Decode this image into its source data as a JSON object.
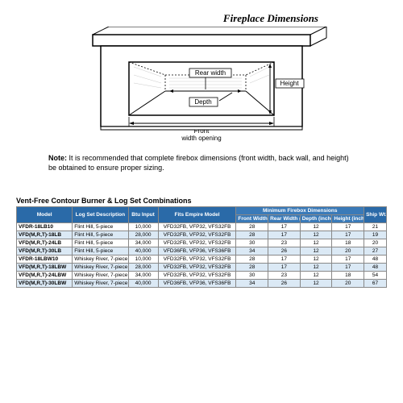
{
  "diagram": {
    "title": "Fireplace Dimensions",
    "labels": {
      "rear_width": "Rear width",
      "height": "Height",
      "depth": "Depth",
      "front": "Front",
      "front_width": "width opening"
    }
  },
  "note": {
    "prefix": "Note:",
    "text": " It is recommended that complete firebox dimensions (front width, back wall, and height) be obtained to ensure proper sizing."
  },
  "table": {
    "title": "Vent-Free Contour Burner & Log Set Combinations",
    "header_bg1": "#2a6aa8",
    "header_bg2": "#3a7ab8",
    "row_alt1": "#ffffff",
    "row_alt2": "#dbe9f5",
    "columns": {
      "model": "Model",
      "desc": "Log Set Description",
      "btu": "Btu Input",
      "fits": "Fits Empire Model",
      "min_group": "Minimum Firebox Dimensions",
      "fw": "Front Width (inches)",
      "rw": "Rear Width (inches)",
      "dp": "Depth (inches)",
      "ht": "Height (inches)",
      "ship": "Ship Wt. (lb)"
    },
    "rows": [
      {
        "model": "VFDR-18LB10",
        "desc": "Flint Hill, 5-piece",
        "btu": "10,000",
        "fits": "VFD32FB, VFP32, VFS32FB",
        "fw": "28",
        "rw": "17",
        "dp": "12",
        "ht": "17",
        "ship": "21"
      },
      {
        "model": "VFD(M,R,T)-18LB",
        "desc": "Flint Hill, 5-piece",
        "btu": "28,000",
        "fits": "VFD32FB, VFP32, VFS32FB",
        "fw": "28",
        "rw": "17",
        "dp": "12",
        "ht": "17",
        "ship": "19"
      },
      {
        "model": "VFD(M,R,T)-24LB",
        "desc": "Flint Hill, 5-piece",
        "btu": "34,000",
        "fits": "VFD32FB, VFP32, VFS32FB",
        "fw": "30",
        "rw": "23",
        "dp": "12",
        "ht": "18",
        "ship": "20"
      },
      {
        "model": "VFD(M,R,T)-30LB",
        "desc": "Flint Hill, 5-piece",
        "btu": "40,000",
        "fits": "VFD36FB, VFP36, VFS36FB",
        "fw": "34",
        "rw": "26",
        "dp": "12",
        "ht": "20",
        "ship": "27"
      },
      {
        "model": "VFDR-18LBW10",
        "desc": "Whiskey River, 7-piece",
        "btu": "10,000",
        "fits": "VFD32FB, VFP32, VFS32FB",
        "fw": "28",
        "rw": "17",
        "dp": "12",
        "ht": "17",
        "ship": "48"
      },
      {
        "model": "VFD(M,R,T)-18LBW",
        "desc": "Whiskey River, 7-piece",
        "btu": "28,000",
        "fits": "VFD32FB, VFP32, VFS32FB",
        "fw": "28",
        "rw": "17",
        "dp": "12",
        "ht": "17",
        "ship": "48"
      },
      {
        "model": "VFD(M,R,T)-24LBW",
        "desc": "Whiskey River, 7-piece",
        "btu": "34,000",
        "fits": "VFD32FB, VFP32, VFS32FB",
        "fw": "30",
        "rw": "23",
        "dp": "12",
        "ht": "18",
        "ship": "54"
      },
      {
        "model": "VFD(M,R,T)-30LBW",
        "desc": "Whiskey River, 7-piece",
        "btu": "40,000",
        "fits": "VFD36FB, VFP36, VFS36FB",
        "fw": "34",
        "rw": "26",
        "dp": "12",
        "ht": "20",
        "ship": "67"
      }
    ]
  }
}
